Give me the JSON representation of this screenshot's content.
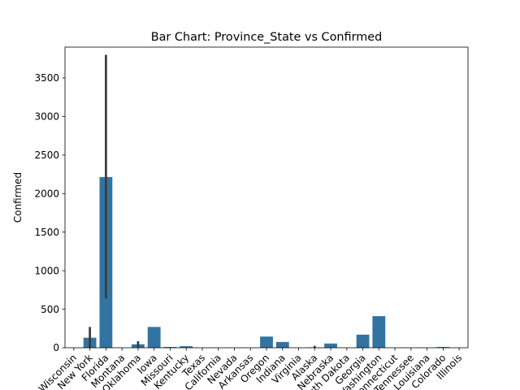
{
  "chart_data": {
    "type": "bar",
    "title": "Bar Chart: Province_State vs Confirmed",
    "xlabel": "",
    "ylabel": "Confirmed",
    "ylim": [
      0,
      3900
    ],
    "yticks": [
      0,
      500,
      1000,
      1500,
      2000,
      2500,
      3000,
      3500
    ],
    "grid": false,
    "bar_color": "#3274a1",
    "error_color": "#3b3b3b",
    "categories": [
      "Wisconsin",
      "New York",
      "Florida",
      "Montana",
      "Oklahoma",
      "Iowa",
      "Missouri",
      "Kentucky",
      "Texas",
      "California",
      "Nevada",
      "Arkansas",
      "Oregon",
      "Indiana",
      "Virginia",
      "Alaska",
      "Nebraska",
      "South Dakota",
      "Georgia",
      "Washington",
      "Connecticut",
      "Tennessee",
      "Louisiana",
      "Colorado",
      "Illinois"
    ],
    "values": [
      0,
      130,
      2215,
      0,
      45,
      270,
      10,
      20,
      0,
      0,
      0,
      0,
      145,
      75,
      0,
      5,
      55,
      0,
      170,
      410,
      0,
      0,
      0,
      10,
      0
    ],
    "errors": [
      null,
      [
        0,
        270
      ],
      [
        640,
        3800
      ],
      null,
      [
        10,
        85
      ],
      null,
      null,
      null,
      null,
      null,
      null,
      null,
      null,
      null,
      null,
      [
        0,
        25
      ],
      null,
      null,
      null,
      null,
      null,
      null,
      null,
      null,
      null
    ]
  }
}
